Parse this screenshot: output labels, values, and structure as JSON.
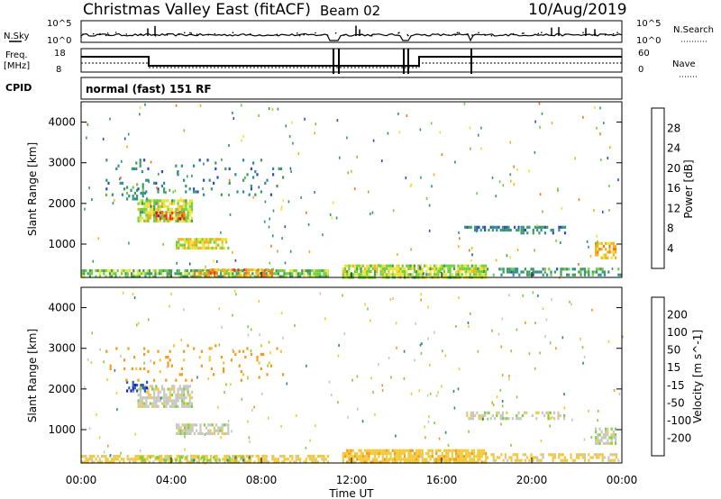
{
  "header": {
    "radar": "Christmas Valley East (fitACF)",
    "beam": "Beam 02",
    "date": "10/Aug/2019"
  },
  "top_panels": {
    "nsky_label": "N.Sky",
    "nsearch_label": "N.Search",
    "nsky_ticks": [
      "10^5",
      "10^0"
    ],
    "nsearch_ticks": [
      "10^5",
      "10^0"
    ],
    "freq_label": "Freq.",
    "freq_unit": "[MHz]",
    "freq_ticks": [
      "18",
      "8"
    ],
    "nave_label": "Nave",
    "nave_ticks": [
      "60",
      "0"
    ],
    "cpid_label": "CPID",
    "cpid_text": "normal (fast) 151 RF"
  },
  "colors": {
    "power_scale": [
      "#1a1ae0",
      "#2d4fb8",
      "#2f8f8f",
      "#3f9c5f",
      "#6fcf3f",
      "#e6e63a",
      "#f5b21d",
      "#f07a1a",
      "#e63a1a",
      "#d40000"
    ],
    "velocity_scale": [
      "#1a1ab8",
      "#2660b0",
      "#2f8a6a",
      "#7fd040",
      "#c8c8c0",
      "#f3c93a",
      "#f59a1a",
      "#f06a1a",
      "#e02a1a"
    ]
  },
  "chart_data": [
    {
      "type": "heatmap",
      "panel": "power",
      "ylabel": "Slant Range [km]",
      "yticks": [
        1000,
        2000,
        3000,
        4000
      ],
      "ylim": [
        180,
        4500
      ],
      "xlim": [
        0,
        24
      ],
      "colorbar_label": "Power [dB]",
      "colorbar_ticks": [
        4,
        8,
        12,
        16,
        20,
        24,
        28
      ],
      "colorbar_range": [
        0,
        32
      ],
      "patches": [
        {
          "t0": 2.5,
          "t1": 5.0,
          "r0": 1500,
          "r1": 2100,
          "value": 16,
          "density": 0.75
        },
        {
          "t0": 3.3,
          "t1": 4.6,
          "r0": 1600,
          "r1": 1800,
          "value": 26,
          "density": 0.6
        },
        {
          "t0": 2.0,
          "t1": 3.0,
          "r0": 2100,
          "r1": 2500,
          "value": 10,
          "density": 0.35
        },
        {
          "t0": 4.2,
          "t1": 6.6,
          "r0": 850,
          "r1": 1150,
          "value": 18,
          "density": 0.8
        },
        {
          "t0": 0.0,
          "t1": 11.0,
          "r0": 180,
          "r1": 380,
          "value": 14,
          "density": 0.7
        },
        {
          "t0": 5.0,
          "t1": 8.5,
          "r0": 200,
          "r1": 400,
          "value": 22,
          "density": 0.6
        },
        {
          "t0": 11.5,
          "t1": 18.0,
          "r0": 180,
          "r1": 500,
          "value": 16,
          "density": 0.8
        },
        {
          "t0": 18.0,
          "t1": 24.0,
          "r0": 180,
          "r1": 420,
          "value": 10,
          "density": 0.5
        },
        {
          "t0": 17.0,
          "t1": 19.5,
          "r0": 1300,
          "r1": 1450,
          "value": 8,
          "density": 0.5
        },
        {
          "t0": 19.5,
          "t1": 21.5,
          "r0": 1250,
          "r1": 1450,
          "value": 8,
          "density": 0.45
        },
        {
          "t0": 22.8,
          "t1": 23.8,
          "r0": 650,
          "r1": 1050,
          "value": 20,
          "density": 0.7
        },
        {
          "t0": 1.0,
          "t1": 9.0,
          "r0": 2200,
          "r1": 3100,
          "value": 8,
          "density": 0.07
        }
      ]
    },
    {
      "type": "heatmap",
      "panel": "velocity",
      "ylabel": "Slant Range [km]",
      "yticks": [
        1000,
        2000,
        3000,
        4000
      ],
      "ylim": [
        180,
        4500
      ],
      "xlim": [
        0,
        24
      ],
      "xlabel": "Time UT",
      "xticks": [
        "00:00",
        "04:00",
        "08:00",
        "12:00",
        "16:00",
        "20:00",
        "00:00"
      ],
      "colorbar_label": "Velocity [m s^-1]",
      "colorbar_ticks": [
        200,
        100,
        50,
        15,
        -15,
        -50,
        -100,
        -200
      ],
      "patches": [
        {
          "t0": 2.5,
          "t1": 5.0,
          "r0": 1500,
          "r1": 2100,
          "value": 0,
          "density": 0.7
        },
        {
          "t0": 4.2,
          "t1": 6.6,
          "r0": 850,
          "r1": 1150,
          "value": 0,
          "density": 0.75
        },
        {
          "t0": 2.0,
          "t1": 3.0,
          "r0": 1900,
          "r1": 2200,
          "value": 200,
          "density": 0.4
        },
        {
          "t0": 0.0,
          "t1": 11.0,
          "r0": 180,
          "r1": 380,
          "value": -30,
          "density": 0.6
        },
        {
          "t0": 2.5,
          "t1": 7.5,
          "r0": 200,
          "r1": 350,
          "value": 40,
          "density": 0.3
        },
        {
          "t0": 11.5,
          "t1": 18.0,
          "r0": 180,
          "r1": 520,
          "value": -35,
          "density": 0.8
        },
        {
          "t0": 18.0,
          "t1": 24.0,
          "r0": 180,
          "r1": 420,
          "value": -25,
          "density": 0.5
        },
        {
          "t0": 17.0,
          "t1": 21.5,
          "r0": 1250,
          "r1": 1450,
          "value": 0,
          "density": 0.45
        },
        {
          "t0": 22.8,
          "t1": 23.8,
          "r0": 650,
          "r1": 1050,
          "value": 0,
          "density": 0.7
        },
        {
          "t0": 1.0,
          "t1": 9.0,
          "r0": 2200,
          "r1": 3100,
          "value": -60,
          "density": 0.06
        }
      ]
    }
  ]
}
